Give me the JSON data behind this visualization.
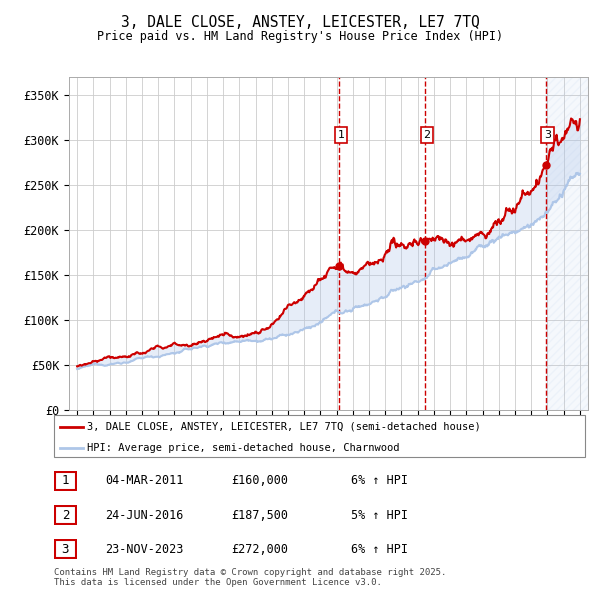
{
  "title_line1": "3, DALE CLOSE, ANSTEY, LEICESTER, LE7 7TQ",
  "title_line2": "Price paid vs. HM Land Registry's House Price Index (HPI)",
  "ylabel_ticks": [
    "£0",
    "£50K",
    "£100K",
    "£150K",
    "£200K",
    "£250K",
    "£300K",
    "£350K"
  ],
  "ytick_values": [
    0,
    50000,
    100000,
    150000,
    200000,
    250000,
    300000,
    350000
  ],
  "ylim": [
    0,
    370000
  ],
  "xlim_start": 1994.5,
  "xlim_end": 2026.5,
  "sale_dates": [
    2011.17,
    2016.48,
    2023.9
  ],
  "sale_prices": [
    160000,
    187500,
    272000
  ],
  "sale_labels": [
    "1",
    "2",
    "3"
  ],
  "legend_line1": "3, DALE CLOSE, ANSTEY, LEICESTER, LE7 7TQ (semi-detached house)",
  "legend_line2": "HPI: Average price, semi-detached house, Charnwood",
  "table_rows": [
    [
      "1",
      "04-MAR-2011",
      "£160,000",
      "6% ↑ HPI"
    ],
    [
      "2",
      "24-JUN-2016",
      "£187,500",
      "5% ↑ HPI"
    ],
    [
      "3",
      "23-NOV-2023",
      "£272,000",
      "6% ↑ HPI"
    ]
  ],
  "footnote": "Contains HM Land Registry data © Crown copyright and database right 2025.\nThis data is licensed under the Open Government Licence v3.0.",
  "hpi_color": "#aec6e8",
  "price_color": "#cc0000",
  "vline_color": "#cc0000",
  "grid_color": "#cccccc",
  "bg_color": "#ffffff",
  "shade_color": "#ddeeff"
}
